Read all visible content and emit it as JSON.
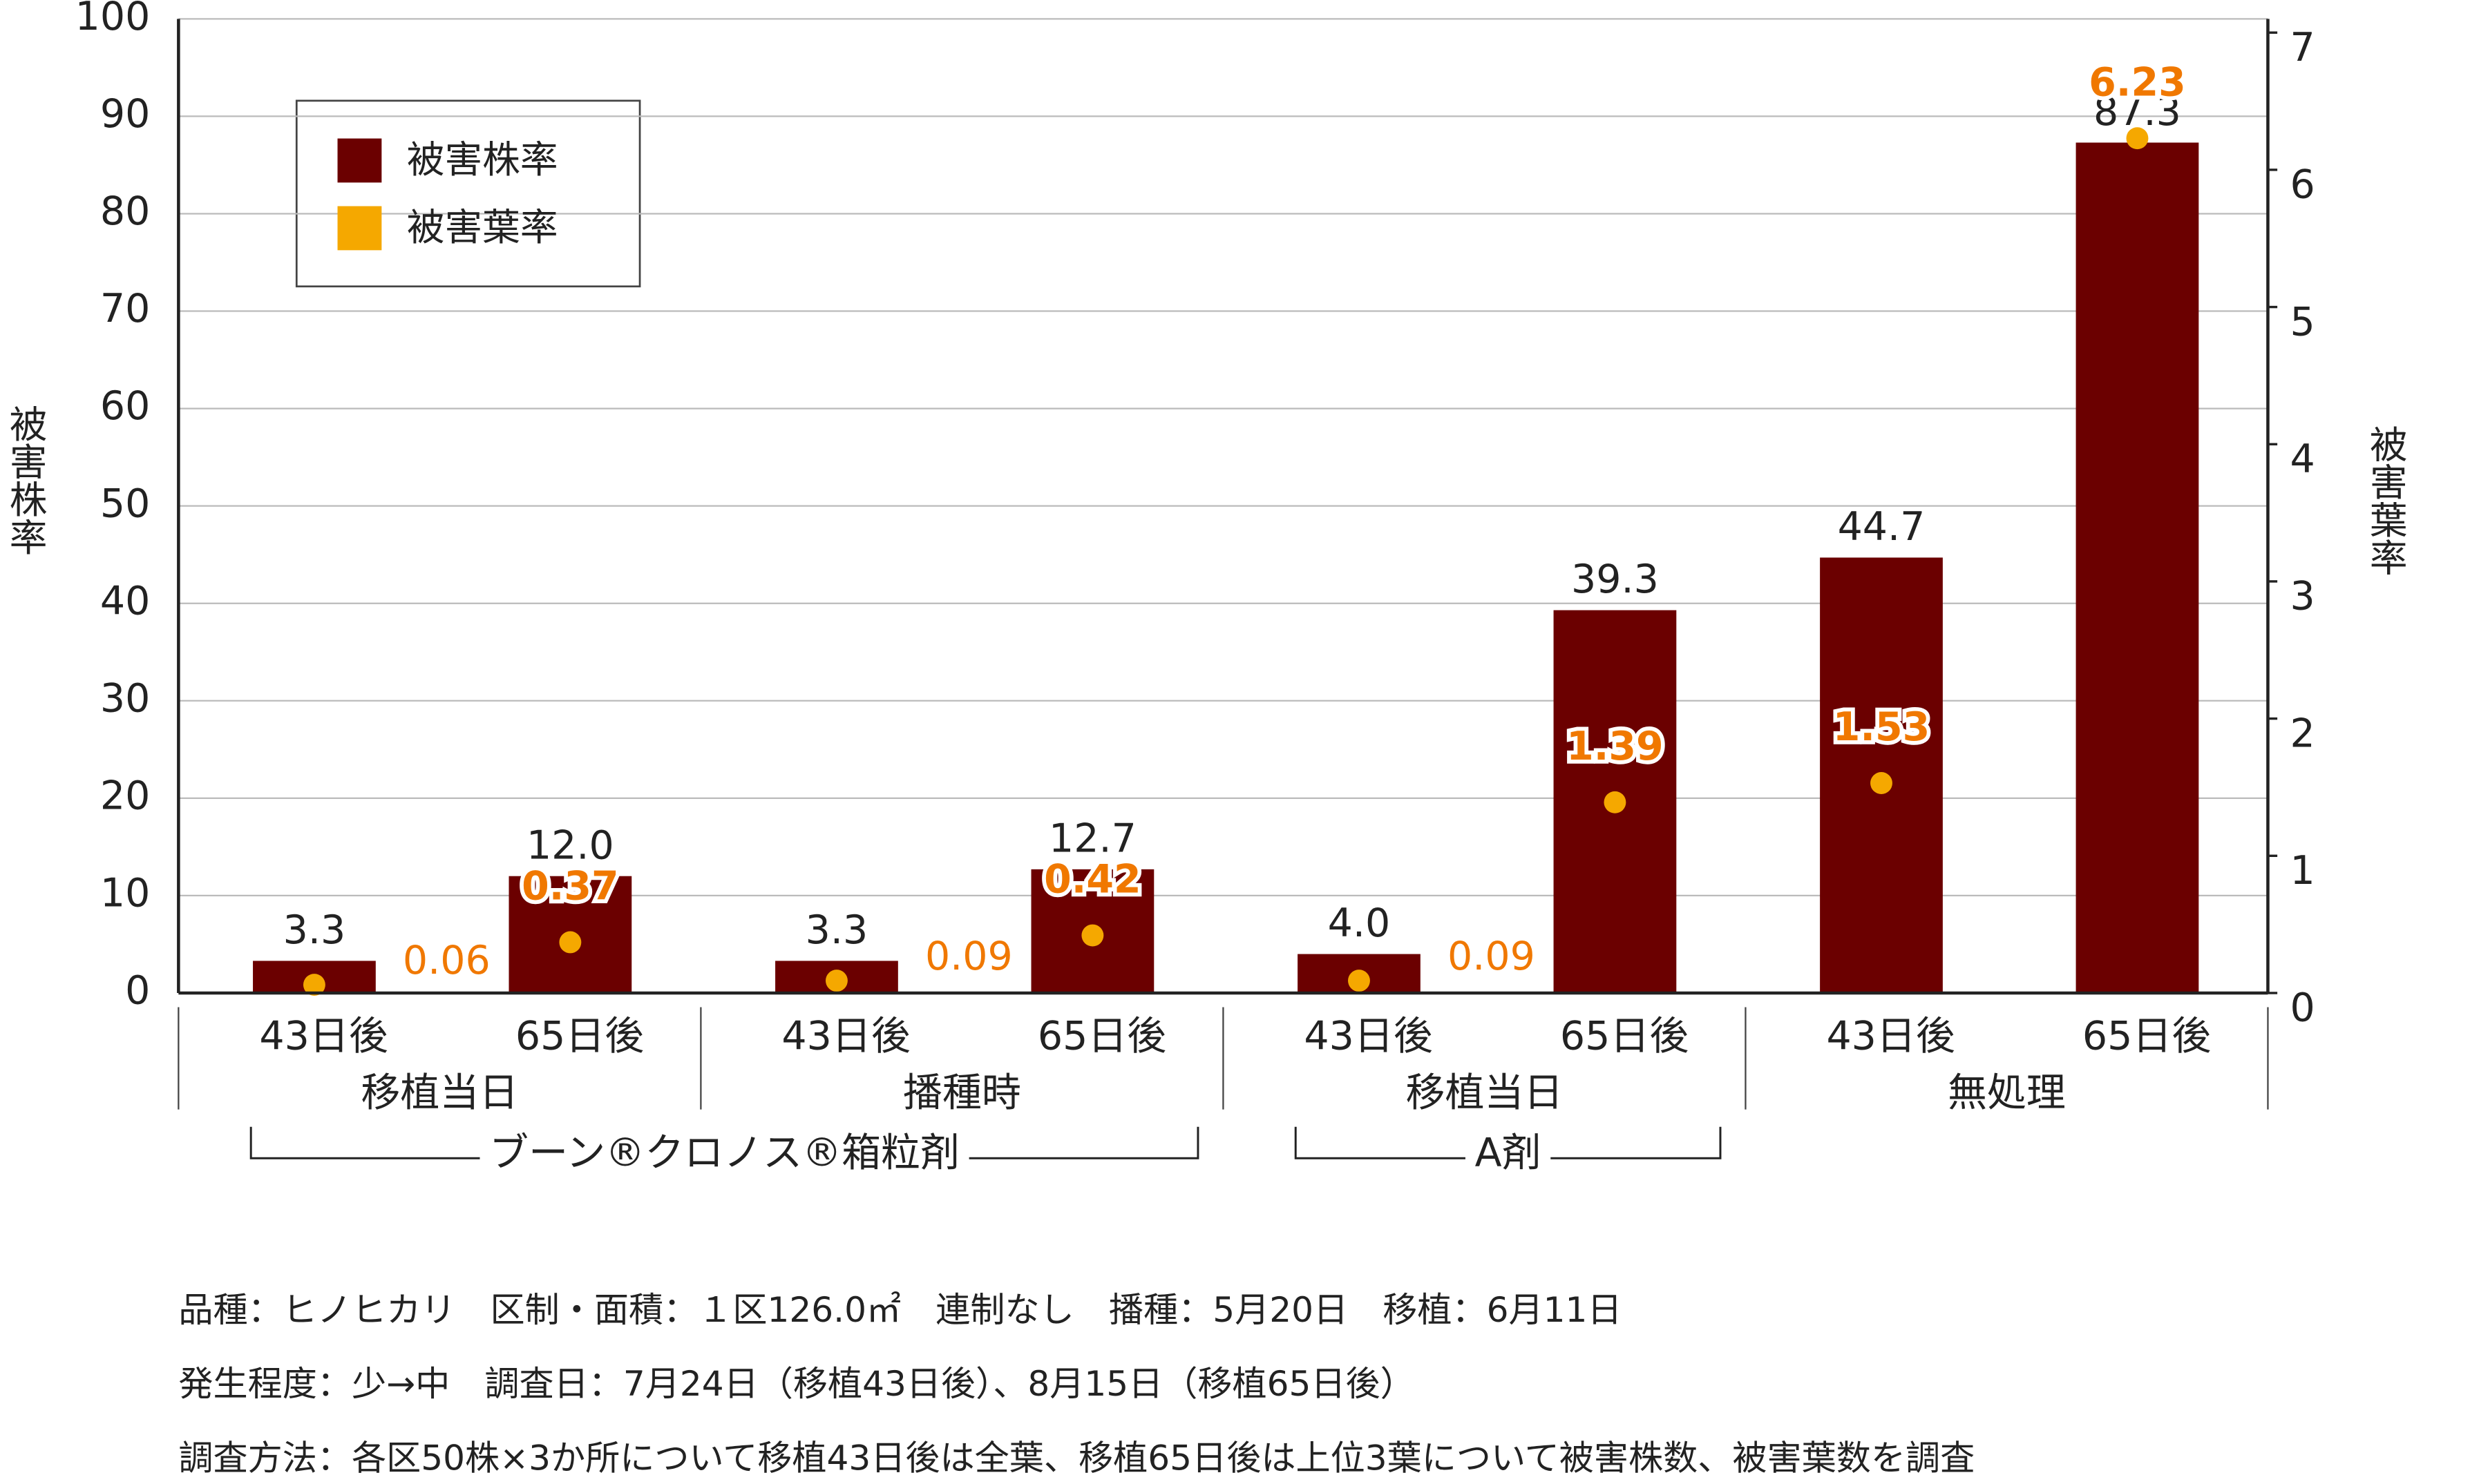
{
  "chart_data": {
    "type": "bar",
    "categories": [
      "43日後",
      "65日後",
      "43日後",
      "65日後",
      "43日後",
      "65日後",
      "43日後",
      "65日後"
    ],
    "groups": [
      "移植当日",
      "播種時",
      "移植当日",
      "無処理"
    ],
    "brackets": [
      {
        "label": "ブーン®クロノス®箱粒剤",
        "from": 0,
        "to": 1
      },
      {
        "label": "A剤",
        "from": 2,
        "to": 2
      }
    ],
    "series": [
      {
        "name": "被害株率",
        "color": "#6b0000",
        "values": [
          3.3,
          12.0,
          3.3,
          12.7,
          4.0,
          39.3,
          44.7,
          87.3
        ],
        "value_labels": [
          "3.3",
          "12.0",
          "3.3",
          "12.7",
          "4.0",
          "39.3",
          "44.7",
          "87.3"
        ]
      },
      {
        "name": "被害葉率",
        "color": "#f5a800",
        "axis": "y2",
        "values": [
          0.06,
          0.37,
          0.09,
          0.42,
          0.09,
          1.39,
          1.53,
          6.23
        ]
      }
    ],
    "ylabel": "被害株率",
    "y2label": "被害葉率",
    "ylim": [
      0,
      100
    ],
    "yticks": [
      0,
      10,
      20,
      30,
      40,
      50,
      60,
      70,
      80,
      90,
      100
    ],
    "y2lim": [
      0,
      7.1
    ],
    "y2ticks": [
      0,
      1,
      2,
      3,
      4,
      5,
      6,
      7
    ],
    "grid": true,
    "notes": [
      "品種：ヒノヒカリ　区制・面積：１区126.0㎡　連制なし　播種：5月20日　移植：6月11日",
      "発生程度：少→中　調査日：7月24日（移植43日後）、8月15日（移植65日後）",
      "調査方法：各区50株×3か所について移植43日後は全葉、移植65日後は上位3葉について被害株数、被害葉数を調査"
    ]
  }
}
